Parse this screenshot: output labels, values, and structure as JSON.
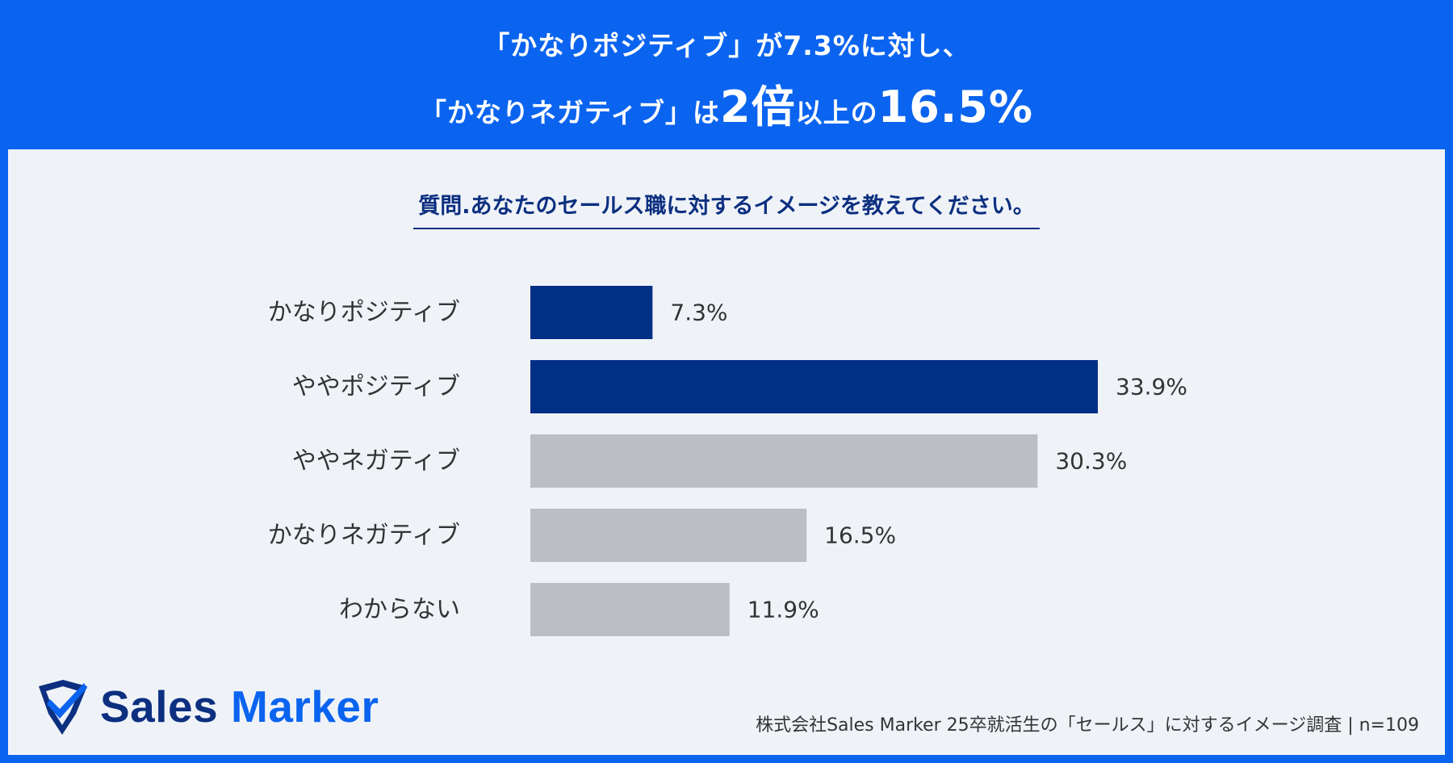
{
  "headline": {
    "line1": "「かなりポジティブ」が7.3%に対し、",
    "line2_pre": "「かなりネガティブ」は",
    "line2_big1": "2倍",
    "line2_mid": "以上の",
    "line2_big2": "16.5%"
  },
  "question": "質問.あなたのセールス職に対するイメージを教えてください。",
  "chart_data": {
    "type": "bar",
    "orientation": "horizontal",
    "title": "質問.あなたのセールス職に対するイメージを教えてください。",
    "categories": [
      "かなりポジティブ",
      "ややポジティブ",
      "ややネガティブ",
      "かなりネガティブ",
      "わからない"
    ],
    "values": [
      7.3,
      33.9,
      30.3,
      16.5,
      11.9
    ],
    "value_labels": [
      "7.3%",
      "33.9%",
      "30.3%",
      "16.5%",
      "11.9%"
    ],
    "unit": "%",
    "xlim": [
      0,
      33.9
    ],
    "grid": false,
    "colors": [
      "#002f86",
      "#002f86",
      "#bbbec2",
      "#bbbec2",
      "#bbbec2"
    ]
  },
  "logo": {
    "word1": "Sales",
    "word2": "Marker",
    "icon": "location-pin-check-icon"
  },
  "source": "株式会社Sales Marker 25卒就活生の「セールス」に対するイメージ調査 | n=109",
  "colors": {
    "brand_blue": "#0b64ef",
    "navy": "#0c2f80",
    "bar_dark": "#002f86",
    "bar_gray": "#bbbec2",
    "panel_bg": "#eff3f8"
  }
}
